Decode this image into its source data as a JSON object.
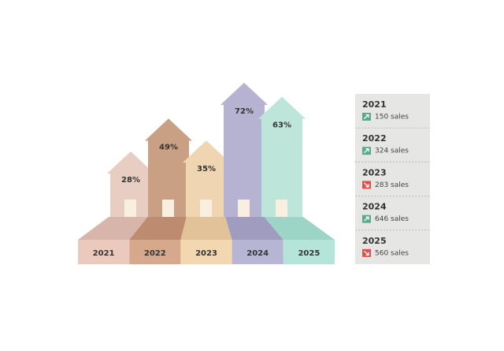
{
  "chart_data": {
    "type": "house-bar",
    "categories": [
      "2021",
      "2022",
      "2023",
      "2024",
      "2025"
    ],
    "values": [
      28,
      49,
      35,
      72,
      63
    ],
    "value_labels": [
      "28%",
      "49%",
      "35%",
      "72%",
      "63%"
    ],
    "colors": [
      "#e8cdc2",
      "#c9a083",
      "#efd5b1",
      "#b5b3d1",
      "#bde5da"
    ],
    "floor_colors": [
      "#d7b5aa",
      "#bd8b70",
      "#e1c299",
      "#9f9cbf",
      "#9cd5c6"
    ],
    "front_colors": [
      "#ecc9bd",
      "#d6a98c",
      "#f3d7b0",
      "#b7b5d4",
      "#b5e5d8"
    ]
  },
  "side_panel": {
    "items": [
      {
        "year": "2021",
        "sales": "150 sales",
        "trend": "up"
      },
      {
        "year": "2022",
        "sales": "324 sales",
        "trend": "up"
      },
      {
        "year": "2023",
        "sales": "283 sales",
        "trend": "down"
      },
      {
        "year": "2024",
        "sales": "646 sales",
        "trend": "up"
      },
      {
        "year": "2025",
        "sales": "560 sales",
        "trend": "down"
      }
    ]
  }
}
